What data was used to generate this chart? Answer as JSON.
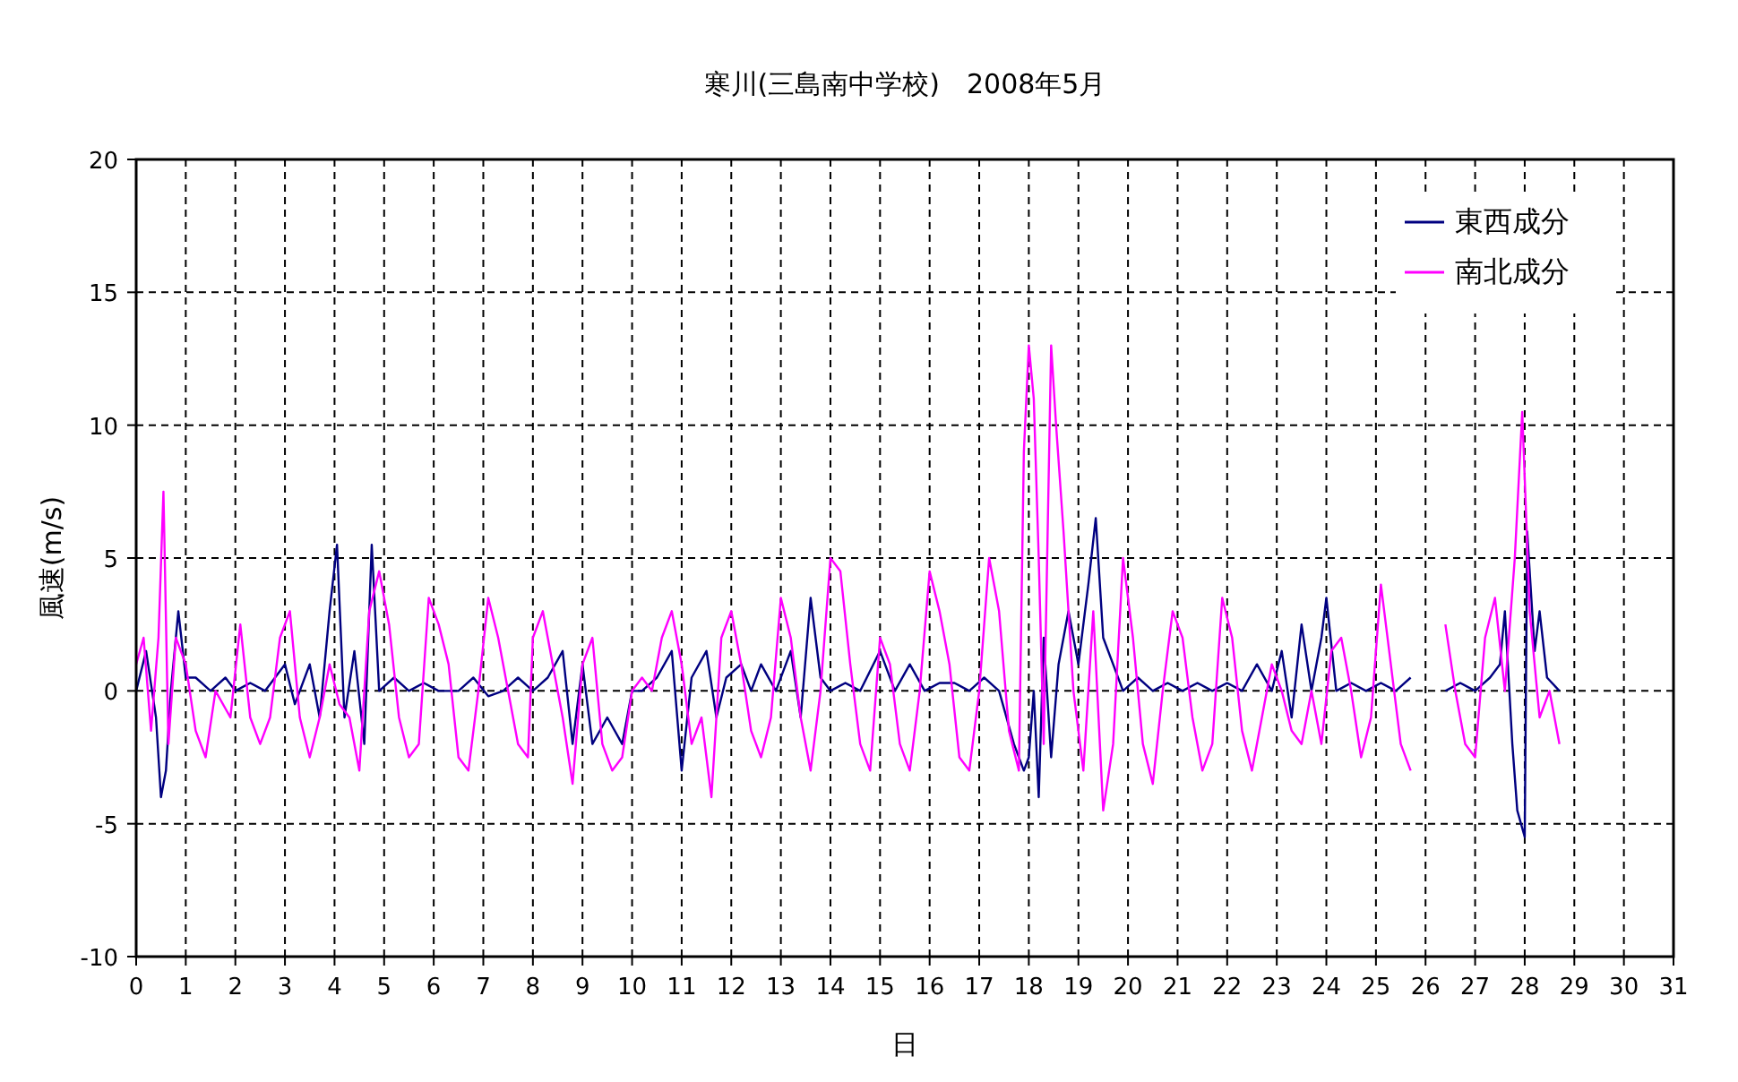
{
  "chart_data": {
    "type": "line",
    "title": "寒川(三島南中学校)　2008年5月",
    "xlabel": "日",
    "ylabel": "風速(m/s)",
    "xlim": [
      0,
      31
    ],
    "xticks": [
      0,
      1,
      2,
      3,
      4,
      5,
      6,
      7,
      8,
      9,
      10,
      11,
      12,
      13,
      14,
      15,
      16,
      17,
      18,
      19,
      20,
      21,
      22,
      23,
      24,
      25,
      26,
      27,
      28,
      29,
      30,
      31
    ],
    "ylim": [
      -10,
      20
    ],
    "yticks": [
      -10,
      -5,
      0,
      5,
      10,
      15,
      20
    ],
    "grid": true,
    "legend": "top right",
    "line_style": "solid",
    "series": [
      {
        "name": "東西成分",
        "color": "#000080",
        "x": [
          0,
          0.2,
          0.4,
          0.5,
          0.6,
          0.7,
          0.85,
          1.0,
          1.2,
          1.5,
          1.8,
          2.0,
          2.3,
          2.6,
          3.0,
          3.2,
          3.5,
          3.7,
          3.9,
          4.05,
          4.2,
          4.4,
          4.6,
          4.75,
          4.9,
          5.2,
          5.5,
          5.8,
          6.1,
          6.5,
          6.8,
          7.1,
          7.4,
          7.7,
          8.0,
          8.3,
          8.6,
          8.8,
          9.0,
          9.2,
          9.5,
          9.8,
          10.0,
          10.2,
          10.5,
          10.8,
          11.0,
          11.2,
          11.5,
          11.7,
          11.9,
          12.2,
          12.4,
          12.6,
          12.9,
          13.2,
          13.4,
          13.6,
          13.8,
          14.0,
          14.3,
          14.6,
          15.0,
          15.3,
          15.6,
          15.9,
          16.2,
          16.5,
          16.8,
          17.1,
          17.4,
          17.7,
          17.9,
          18.0,
          18.1,
          18.2,
          18.3,
          18.45,
          18.6,
          18.8,
          19.0,
          19.2,
          19.35,
          19.5,
          19.7,
          19.9,
          20.2,
          20.5,
          20.8,
          21.1,
          21.4,
          21.7,
          22.0,
          22.3,
          22.6,
          22.9,
          23.1,
          23.3,
          23.5,
          23.7,
          23.9,
          24.0,
          24.2,
          24.5,
          24.8,
          25.1,
          25.4,
          25.7,
          26.0,
          26.4,
          26.7,
          27.0,
          27.3,
          27.5,
          27.6,
          27.75,
          27.85,
          28.0,
          28.05,
          28.2,
          28.3,
          28.45,
          28.7
        ],
        "values": [
          0,
          1.5,
          -1,
          -4,
          -3,
          0,
          3,
          0.5,
          0.5,
          0,
          0.5,
          0,
          0.3,
          0,
          1,
          -0.5,
          1,
          -1,
          3,
          5.5,
          -1,
          1.5,
          -2,
          5.5,
          0,
          0.5,
          0,
          0.3,
          0,
          0,
          0.5,
          -0.2,
          0,
          0.5,
          0,
          0.5,
          1.5,
          -2,
          1,
          -2,
          -1,
          -2,
          0,
          0,
          0.5,
          1.5,
          -3,
          0.5,
          1.5,
          -1,
          0.5,
          1,
          0,
          1,
          0,
          1.5,
          -1,
          3.5,
          0.5,
          0,
          0.3,
          0,
          1.5,
          0,
          1,
          0,
          0.3,
          0.3,
          0,
          0.5,
          0,
          -2,
          -3,
          -2.5,
          0,
          -4,
          2,
          -2.5,
          1,
          3,
          1,
          4,
          6.5,
          2,
          1,
          0,
          0.5,
          0,
          0.3,
          0,
          0.3,
          0,
          0.3,
          0,
          1,
          0,
          1.5,
          -1,
          2.5,
          0,
          2,
          3.5,
          0,
          0.3,
          0,
          0.3,
          0,
          0.5,
          null,
          0,
          0.3,
          0,
          0.5,
          1,
          3,
          -2,
          -4.5,
          -5.5,
          6,
          1.5,
          3,
          0.5,
          0
        ]
      },
      {
        "name": "南北成分",
        "color": "#ff00ff",
        "x": [
          0,
          0.15,
          0.3,
          0.45,
          0.55,
          0.65,
          0.8,
          1.0,
          1.2,
          1.4,
          1.6,
          1.9,
          2.1,
          2.3,
          2.5,
          2.7,
          2.9,
          3.1,
          3.3,
          3.5,
          3.7,
          3.9,
          4.1,
          4.3,
          4.5,
          4.7,
          4.9,
          5.1,
          5.3,
          5.5,
          5.7,
          5.9,
          6.1,
          6.3,
          6.5,
          6.7,
          6.9,
          7.1,
          7.3,
          7.5,
          7.7,
          7.9,
          8.0,
          8.2,
          8.4,
          8.6,
          8.8,
          9.0,
          9.2,
          9.4,
          9.6,
          9.8,
          10.0,
          10.2,
          10.4,
          10.6,
          10.8,
          11.0,
          11.2,
          11.4,
          11.6,
          11.8,
          12.0,
          12.2,
          12.4,
          12.6,
          12.8,
          13.0,
          13.2,
          13.4,
          13.6,
          13.8,
          14.0,
          14.2,
          14.4,
          14.6,
          14.8,
          15.0,
          15.2,
          15.4,
          15.6,
          15.8,
          16.0,
          16.2,
          16.4,
          16.6,
          16.8,
          17.0,
          17.2,
          17.4,
          17.6,
          17.8,
          17.9,
          18.0,
          18.1,
          18.2,
          18.3,
          18.45,
          18.55,
          18.7,
          18.9,
          19.1,
          19.3,
          19.5,
          19.7,
          19.9,
          20.1,
          20.3,
          20.5,
          20.7,
          20.9,
          21.1,
          21.3,
          21.5,
          21.7,
          21.9,
          22.1,
          22.3,
          22.5,
          22.7,
          22.9,
          23.1,
          23.3,
          23.5,
          23.7,
          23.9,
          24.1,
          24.3,
          24.5,
          24.7,
          24.9,
          25.1,
          25.3,
          25.5,
          25.7,
          26.0,
          26.4,
          26.6,
          26.8,
          27.0,
          27.2,
          27.4,
          27.6,
          27.8,
          27.95,
          28.1,
          28.3,
          28.5,
          28.7
        ],
        "values": [
          1,
          2,
          -1.5,
          2,
          7.5,
          -2,
          2,
          1,
          -1.5,
          -2.5,
          0,
          -1,
          2.5,
          -1,
          -2,
          -1,
          2,
          3,
          -1,
          -2.5,
          -1,
          1,
          -0.5,
          -1,
          -3,
          3,
          4.5,
          2.5,
          -1,
          -2.5,
          -2,
          3.5,
          2.5,
          1,
          -2.5,
          -3,
          0,
          3.5,
          2,
          0,
          -2,
          -2.5,
          2,
          3,
          1,
          -1,
          -3.5,
          1,
          2,
          -2,
          -3,
          -2.5,
          0,
          0.5,
          0,
          2,
          3,
          1,
          -2,
          -1,
          -4,
          2,
          3,
          1,
          -1.5,
          -2.5,
          -1,
          3.5,
          2,
          -1,
          -3,
          0,
          5,
          4.5,
          1,
          -2,
          -3,
          2,
          1,
          -2,
          -3,
          0,
          4.5,
          3,
          1,
          -2.5,
          -3,
          0,
          5,
          3,
          -1.5,
          -3,
          9,
          13,
          11,
          5,
          -2,
          13,
          10,
          6,
          0,
          -3,
          3,
          -4.5,
          -2,
          5,
          2,
          -2,
          -3.5,
          0,
          3,
          2,
          -1,
          -3,
          -2,
          3.5,
          2,
          -1.5,
          -3,
          -1,
          1,
          0,
          -1.5,
          -2,
          0,
          -2,
          1.5,
          2,
          0,
          -2.5,
          -1,
          4,
          1,
          -2,
          -3,
          null,
          2.5,
          0,
          -2,
          -2.5,
          2,
          3.5,
          0,
          5,
          10.5,
          3,
          -1,
          0,
          -2
        ]
      }
    ]
  }
}
